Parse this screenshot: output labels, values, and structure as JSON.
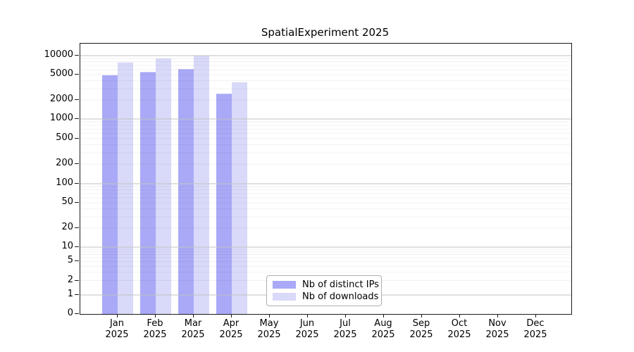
{
  "chart_data": {
    "type": "bar",
    "title": "SpatialExperiment 2025",
    "categories": [
      "Jan 2025",
      "Feb 2025",
      "Mar 2025",
      "Apr 2025",
      "May 2025",
      "Jun 2025",
      "Jul 2025",
      "Aug 2025",
      "Sep 2025",
      "Oct 2025",
      "Nov 2025",
      "Dec 2025"
    ],
    "series": [
      {
        "name": "Nb of distinct IPs",
        "color": "#a9a9f7",
        "values": [
          4900,
          5500,
          6100,
          2500,
          null,
          null,
          null,
          null,
          null,
          null,
          null,
          null
        ]
      },
      {
        "name": "Nb of downloads",
        "color": "#d9d9f9",
        "values": [
          7800,
          9000,
          10000,
          3800,
          null,
          null,
          null,
          null,
          null,
          null,
          null,
          null
        ]
      }
    ],
    "y_ticks": [
      0,
      1,
      2,
      5,
      10,
      20,
      50,
      100,
      200,
      500,
      1000,
      2000,
      5000,
      10000
    ],
    "y_scale": "log",
    "ylim": [
      0,
      15000
    ],
    "xlabel": "",
    "ylabel": "",
    "grid": "on",
    "legend_position": "lower-center"
  }
}
